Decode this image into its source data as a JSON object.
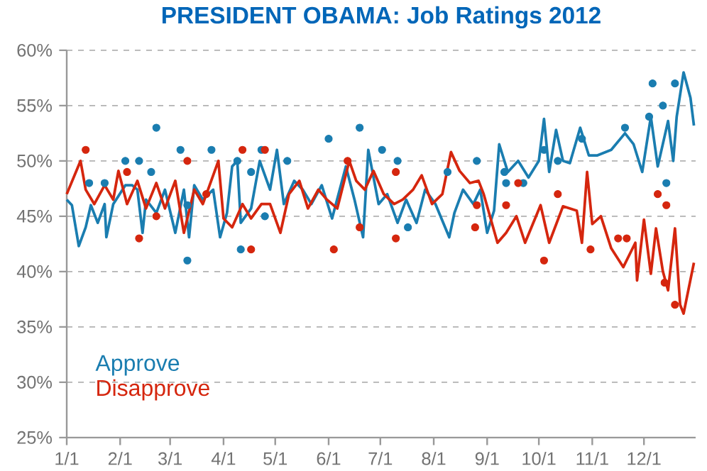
{
  "chart_data": {
    "type": "line",
    "title": "PRESIDENT OBAMA: Job Ratings 2012",
    "xlim": [
      "2012-01-01",
      "2012-12-31"
    ],
    "xticks": [
      {
        "value": "2012-01-01",
        "label": "1/1"
      },
      {
        "value": "2012-02-01",
        "label": "2/1"
      },
      {
        "value": "2012-03-01",
        "label": "3/1"
      },
      {
        "value": "2012-04-01",
        "label": "4/1"
      },
      {
        "value": "2012-05-01",
        "label": "5/1"
      },
      {
        "value": "2012-06-01",
        "label": "6/1"
      },
      {
        "value": "2012-07-01",
        "label": "7/1"
      },
      {
        "value": "2012-08-01",
        "label": "8/1"
      },
      {
        "value": "2012-09-01",
        "label": "9/1"
      },
      {
        "value": "2012-10-01",
        "label": "10/1"
      },
      {
        "value": "2012-11-01",
        "label": "11/1"
      },
      {
        "value": "2012-12-01",
        "label": "12/1"
      }
    ],
    "ylim": [
      25,
      60
    ],
    "yticks": [
      {
        "value": 25,
        "label": "25%"
      },
      {
        "value": 30,
        "label": "30%"
      },
      {
        "value": 35,
        "label": "35%"
      },
      {
        "value": 40,
        "label": "40%"
      },
      {
        "value": 45,
        "label": "45%"
      },
      {
        "value": 50,
        "label": "50%"
      },
      {
        "value": 55,
        "label": "55%"
      },
      {
        "value": 60,
        "label": "60%"
      }
    ],
    "grid": "y",
    "legend": "bottom left",
    "series": [
      {
        "name": "Approve",
        "marker": "none",
        "color": "#1a7db0",
        "x": [
          "2012-01-01",
          "2012-01-04",
          "2012-01-08",
          "2012-01-12",
          "2012-01-15",
          "2012-01-19",
          "2012-01-23",
          "2012-01-24",
          "2012-01-28",
          "2012-02-04",
          "2012-02-08",
          "2012-02-11",
          "2012-02-14",
          "2012-02-16",
          "2012-02-22",
          "2012-02-27",
          "2012-03-04",
          "2012-03-09",
          "2012-03-12",
          "2012-03-15",
          "2012-03-20",
          "2012-03-26",
          "2012-03-30",
          "2012-04-03",
          "2012-04-06",
          "2012-04-09",
          "2012-04-11",
          "2012-04-17",
          "2012-04-22",
          "2012-04-25",
          "2012-04-28",
          "2012-05-02",
          "2012-05-06",
          "2012-05-12",
          "2012-05-17",
          "2012-05-22",
          "2012-05-28",
          "2012-06-03",
          "2012-06-11",
          "2012-06-16",
          "2012-06-21",
          "2012-06-24",
          "2012-06-30",
          "2012-07-05",
          "2012-07-11",
          "2012-07-16",
          "2012-07-22",
          "2012-07-27",
          "2012-08-02",
          "2012-08-10",
          "2012-08-13",
          "2012-08-18",
          "2012-08-24",
          "2012-08-28",
          "2012-09-01",
          "2012-09-05",
          "2012-09-08",
          "2012-09-13",
          "2012-09-19",
          "2012-09-25",
          "2012-10-01",
          "2012-10-04",
          "2012-10-07",
          "2012-10-11",
          "2012-10-15",
          "2012-10-19",
          "2012-10-25",
          "2012-10-30",
          "2012-11-04",
          "2012-11-12",
          "2012-11-20",
          "2012-11-25",
          "2012-11-30",
          "2012-12-05",
          "2012-12-09",
          "2012-12-15",
          "2012-12-18",
          "2012-12-20",
          "2012-12-24",
          "2012-12-28",
          "2012-12-30"
        ],
        "values": [
          46.5,
          46,
          42.3,
          44,
          46,
          44.4,
          46.1,
          43.1,
          46.1,
          47.8,
          47.8,
          47.4,
          43.5,
          46.5,
          45.3,
          47.4,
          43.5,
          47.4,
          43.1,
          47.8,
          46.5,
          47.4,
          43.1,
          45.3,
          49.5,
          50,
          44.4,
          45.7,
          50,
          48.7,
          47.4,
          51,
          46.1,
          48.2,
          47.4,
          46.1,
          47.8,
          44.8,
          49.5,
          46.5,
          43.1,
          51,
          46.1,
          47,
          44.4,
          46.5,
          44.4,
          47.4,
          46.1,
          43.1,
          45.3,
          47.4,
          46.1,
          47.4,
          43.5,
          45.5,
          51.5,
          49,
          50,
          48.5,
          50,
          53.8,
          49,
          52.8,
          50,
          49.8,
          53,
          50.5,
          50.5,
          51,
          52.5,
          51.5,
          49,
          54,
          49.5,
          53.6,
          50,
          54,
          58,
          55.7,
          53.2
        ]
      },
      {
        "name": "Disapprove",
        "marker": "none",
        "color": "#d5260e",
        "x": [
          "2012-01-01",
          "2012-01-09",
          "2012-01-12",
          "2012-01-17",
          "2012-01-23",
          "2012-01-28",
          "2012-01-31",
          "2012-02-05",
          "2012-02-11",
          "2012-02-16",
          "2012-02-22",
          "2012-02-27",
          "2012-03-04",
          "2012-03-09",
          "2012-03-15",
          "2012-03-20",
          "2012-03-29",
          "2012-04-01",
          "2012-04-06",
          "2012-04-12",
          "2012-04-17",
          "2012-04-23",
          "2012-04-28",
          "2012-05-04",
          "2012-05-09",
          "2012-05-15",
          "2012-05-20",
          "2012-05-26",
          "2012-05-31",
          "2012-06-06",
          "2012-06-13",
          "2012-06-17",
          "2012-06-22",
          "2012-06-27",
          "2012-07-03",
          "2012-07-09",
          "2012-07-14",
          "2012-07-20",
          "2012-07-25",
          "2012-07-31",
          "2012-08-06",
          "2012-08-11",
          "2012-08-16",
          "2012-08-22",
          "2012-08-27",
          "2012-08-30",
          "2012-09-07",
          "2012-09-12",
          "2012-09-18",
          "2012-09-23",
          "2012-10-02",
          "2012-10-07",
          "2012-10-15",
          "2012-10-23",
          "2012-10-26",
          "2012-10-29",
          "2012-11-01",
          "2012-11-06",
          "2012-11-12",
          "2012-11-19",
          "2012-11-26",
          "2012-11-27",
          "2012-12-01",
          "2012-12-05",
          "2012-12-08",
          "2012-12-12",
          "2012-12-15",
          "2012-12-19",
          "2012-12-22",
          "2012-12-24",
          "2012-12-27",
          "2012-12-30"
        ],
        "values": [
          47,
          50,
          47.4,
          46.1,
          47.8,
          46.5,
          49.1,
          46.1,
          48.2,
          45.7,
          48,
          45.7,
          48.2,
          43.5,
          47.4,
          46.1,
          50,
          44.8,
          44,
          46.1,
          44.8,
          46.1,
          46.1,
          43.5,
          47,
          48.2,
          45.7,
          47.4,
          46.5,
          45.7,
          50,
          48.2,
          47.4,
          49.1,
          47,
          46.1,
          46.5,
          47.4,
          48.7,
          46.1,
          47,
          50.8,
          49.1,
          48,
          48.2,
          47,
          42.6,
          43.5,
          45,
          42.6,
          46,
          42.6,
          45.9,
          45.5,
          42.6,
          49,
          44.3,
          45,
          42.1,
          40.4,
          42.6,
          39.2,
          44.7,
          39.8,
          43.9,
          40,
          38.3,
          43.9,
          37,
          36.2,
          38.5,
          40.8
        ]
      },
      {
        "type": "scatter",
        "marker": "circle",
        "color": "#1a7db0",
        "x": [
          "2012-01-14",
          "2012-01-23",
          "2012-02-04",
          "2012-02-12",
          "2012-02-19",
          "2012-02-22",
          "2012-03-07",
          "2012-03-11",
          "2012-03-11",
          "2012-03-25",
          "2012-04-09",
          "2012-04-11",
          "2012-04-17",
          "2012-04-23",
          "2012-04-25",
          "2012-05-08",
          "2012-06-01",
          "2012-06-19",
          "2012-07-02",
          "2012-07-11",
          "2012-07-17",
          "2012-08-09",
          "2012-08-26",
          "2012-09-11",
          "2012-09-12",
          "2012-09-22",
          "2012-10-04",
          "2012-10-12",
          "2012-10-26",
          "2012-11-20",
          "2012-12-04",
          "2012-12-06",
          "2012-12-12",
          "2012-12-14",
          "2012-12-19"
        ],
        "values": [
          48,
          48,
          50,
          50,
          49,
          53,
          51,
          41,
          46,
          51,
          50,
          42,
          49,
          51,
          45,
          50,
          52,
          53,
          51,
          50,
          44,
          49,
          50,
          49,
          48,
          48,
          51,
          50,
          52,
          53,
          54,
          57,
          55,
          48,
          57
        ]
      },
      {
        "type": "scatter",
        "marker": "circle",
        "color": "#d5260e",
        "x": [
          "2012-01-12",
          "2012-02-05",
          "2012-02-12",
          "2012-02-22",
          "2012-03-11",
          "2012-03-22",
          "2012-04-12",
          "2012-04-17",
          "2012-04-25",
          "2012-06-04",
          "2012-06-12",
          "2012-06-19",
          "2012-07-10",
          "2012-07-10",
          "2012-08-25",
          "2012-08-26",
          "2012-09-12",
          "2012-09-19",
          "2012-10-04",
          "2012-10-12",
          "2012-10-31",
          "2012-11-16",
          "2012-11-21",
          "2012-12-09",
          "2012-12-13",
          "2012-12-14",
          "2012-12-19"
        ],
        "values": [
          51,
          49,
          43,
          45,
          50,
          47,
          51,
          42,
          51,
          42,
          50,
          44,
          43,
          49,
          44,
          46,
          46,
          48,
          41,
          47,
          42,
          43,
          43,
          47,
          39,
          46,
          37
        ]
      }
    ]
  }
}
